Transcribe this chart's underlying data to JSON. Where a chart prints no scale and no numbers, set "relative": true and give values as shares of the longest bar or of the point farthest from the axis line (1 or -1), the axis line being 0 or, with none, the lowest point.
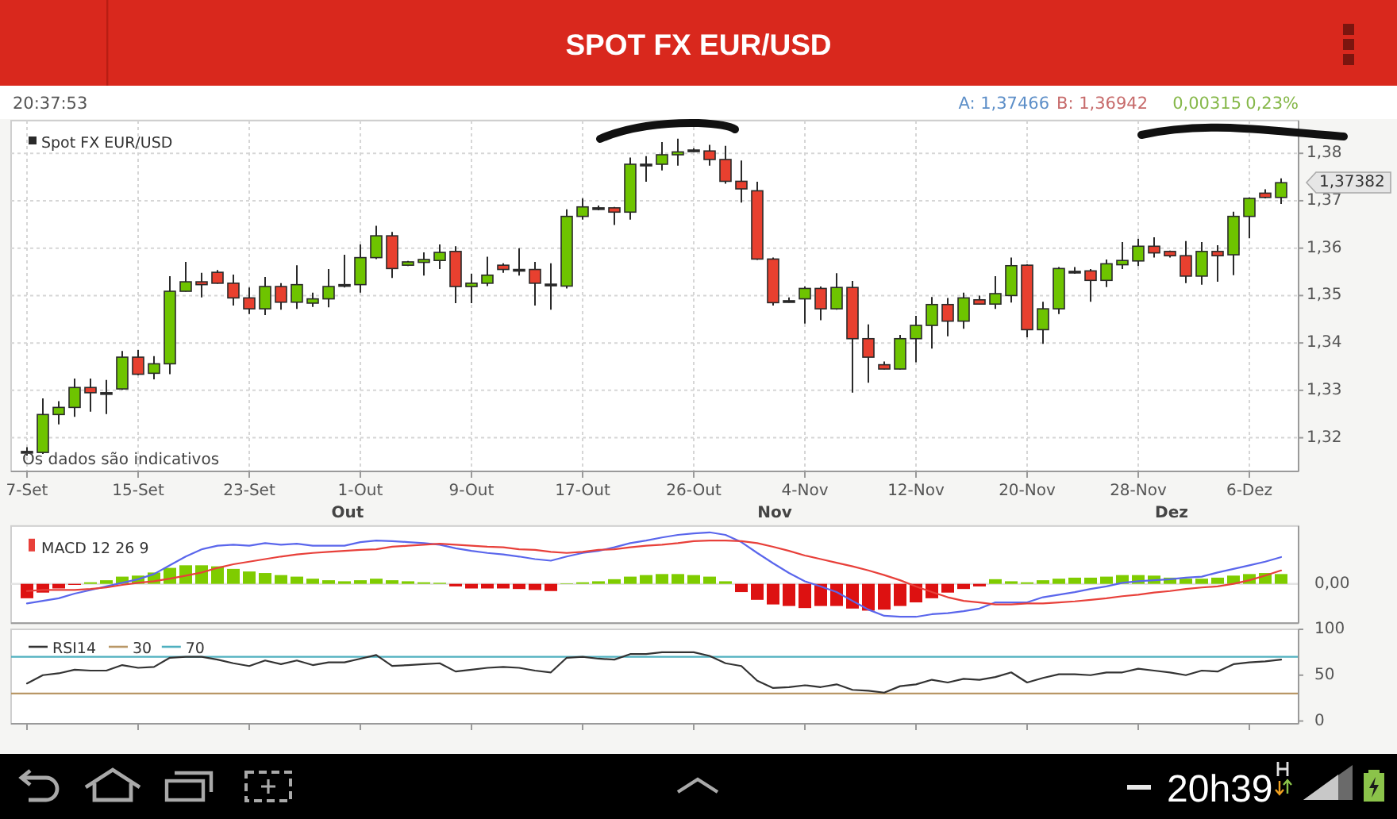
{
  "chart_data": [
    {
      "type": "candlestick",
      "title": "SPOT FX EUR/USD",
      "categories": [
        "7-Set",
        null,
        null,
        null,
        null,
        null,
        null,
        "15-Set",
        null,
        null,
        null,
        null,
        null,
        null,
        "23-Set",
        null,
        null,
        null,
        null,
        null,
        null,
        "1-Out",
        null,
        null,
        null,
        null,
        null,
        null,
        "9-Out",
        null,
        null,
        null,
        null,
        null,
        null,
        "17-Out",
        null,
        null,
        null,
        null,
        null,
        null,
        "26-Out",
        null,
        null,
        null,
        null,
        null,
        null,
        "4-Nov",
        null,
        null,
        null,
        null,
        null,
        null,
        "12-Nov",
        null,
        null,
        null,
        null,
        null,
        null,
        "20-Nov",
        null,
        null,
        null,
        null,
        null,
        null,
        "28-Nov",
        null,
        null,
        null,
        null,
        null,
        null,
        "6-Dez",
        null,
        null
      ],
      "ylim": [
        1.3129,
        1.3869
      ],
      "yticks": [
        {
          "value": 1.32,
          "label": "1,32"
        },
        {
          "value": 1.33,
          "label": "1,33"
        },
        {
          "value": 1.34,
          "label": "1,34"
        },
        {
          "value": 1.35,
          "label": "1,35"
        },
        {
          "value": 1.36,
          "label": "1,36"
        },
        {
          "value": 1.37,
          "label": "1,37"
        },
        {
          "value": 1.38,
          "label": "1,38"
        }
      ],
      "grid": true,
      "legend": "top left",
      "series": [
        {
          "name": "Spot FX EUR/USD",
          "color": "#2a2a2a",
          "colors": [
            "#222222",
            "#6ec400",
            "#6ec400",
            "#6ec400",
            "#e8402f",
            "#222222",
            "#6ec400",
            "#e8402f",
            "#6ec400",
            "#6ec400",
            "#6ec400",
            "#e8402f",
            "#e8402f",
            "#e8402f",
            "#e8402f",
            "#6ec400",
            "#e8402f",
            "#6ec400",
            "#6ec400",
            "#6ec400",
            "#222222",
            "#6ec400",
            "#6ec400",
            "#e8402f",
            "#6ec400",
            "#6ec400",
            "#6ec400",
            "#e8402f",
            "#6ec400",
            "#6ec400",
            "#e8402f",
            "#222222",
            "#e8402f",
            "#222222",
            "#6ec400",
            "#6ec400",
            "#222222",
            "#e8402f",
            "#6ec400",
            "#222222",
            "#6ec400",
            "#6ec400",
            "#222222",
            "#e8402f",
            "#e8402f",
            "#e8402f",
            "#e8402f",
            "#e8402f",
            "#222222",
            "#6ec400",
            "#e8402f",
            "#6ec400",
            "#e8402f",
            "#e8402f",
            "#e8402f",
            "#6ec400",
            "#6ec400",
            "#6ec400",
            "#e8402f",
            "#6ec400",
            "#e8402f",
            "#6ec400",
            "#6ec400",
            "#e8402f",
            "#6ec400",
            "#6ec400",
            "#222222",
            "#e8402f",
            "#6ec400",
            "#6ec400",
            "#6ec400",
            "#e8402f",
            "#e8402f",
            "#e8402f",
            "#6ec400",
            "#e8402f",
            "#6ec400",
            "#6ec400",
            "#e8402f",
            "#6ec400"
          ],
          "ohlc": [
            [
              1.3171,
              1.318,
              1.3162,
              1.3171
            ],
            [
              1.3169,
              1.3283,
              1.3166,
              1.3249
            ],
            [
              1.3249,
              1.3277,
              1.3228,
              1.3264
            ],
            [
              1.3264,
              1.3325,
              1.3244,
              1.3306
            ],
            [
              1.3306,
              1.3325,
              1.3255,
              1.3295
            ],
            [
              1.3295,
              1.3322,
              1.325,
              1.3295
            ],
            [
              1.3303,
              1.3383,
              1.3301,
              1.337
            ],
            [
              1.337,
              1.3385,
              1.3332,
              1.3334
            ],
            [
              1.3336,
              1.3372,
              1.3323,
              1.3356
            ],
            [
              1.3356,
              1.3541,
              1.3334,
              1.3509
            ],
            [
              1.3509,
              1.3571,
              1.3508,
              1.3529
            ],
            [
              1.3529,
              1.3548,
              1.3496,
              1.3523
            ],
            [
              1.3549,
              1.3554,
              1.3525,
              1.3526
            ],
            [
              1.3526,
              1.3544,
              1.3479,
              1.3495
            ],
            [
              1.3495,
              1.3517,
              1.3461,
              1.3472
            ],
            [
              1.3472,
              1.3539,
              1.3459,
              1.3519
            ],
            [
              1.3519,
              1.3526,
              1.347,
              1.3486
            ],
            [
              1.3486,
              1.3564,
              1.3472,
              1.3523
            ],
            [
              1.3484,
              1.3506,
              1.3476,
              1.3493
            ],
            [
              1.3493,
              1.3556,
              1.3475,
              1.3519
            ],
            [
              1.3523,
              1.3586,
              1.3517,
              1.3523
            ],
            [
              1.3523,
              1.3608,
              1.3506,
              1.358
            ],
            [
              1.358,
              1.3647,
              1.3577,
              1.3626
            ],
            [
              1.3626,
              1.3634,
              1.3537,
              1.3557
            ],
            [
              1.3564,
              1.3573,
              1.3562,
              1.3571
            ],
            [
              1.357,
              1.3591,
              1.3542,
              1.3576
            ],
            [
              1.3574,
              1.3608,
              1.3556,
              1.3591
            ],
            [
              1.3593,
              1.3604,
              1.3484,
              1.3519
            ],
            [
              1.3519,
              1.3546,
              1.3484,
              1.3526
            ],
            [
              1.3526,
              1.3582,
              1.352,
              1.3543
            ],
            [
              1.3564,
              1.3568,
              1.3548,
              1.3555
            ],
            [
              1.3555,
              1.36,
              1.3542,
              1.3555
            ],
            [
              1.3555,
              1.3571,
              1.3479,
              1.3526
            ],
            [
              1.3524,
              1.3568,
              1.347,
              1.3524
            ],
            [
              1.352,
              1.3682,
              1.3515,
              1.3667
            ],
            [
              1.3667,
              1.3705,
              1.366,
              1.3687
            ],
            [
              1.3685,
              1.369,
              1.368,
              1.3685
            ],
            [
              1.3685,
              1.3687,
              1.3649,
              1.3676
            ],
            [
              1.3676,
              1.3791,
              1.366,
              1.3777
            ],
            [
              1.3777,
              1.3794,
              1.374,
              1.3777
            ],
            [
              1.3777,
              1.3824,
              1.3764,
              1.3797
            ],
            [
              1.3797,
              1.3831,
              1.3774,
              1.3803
            ],
            [
              1.3807,
              1.3811,
              1.3803,
              1.3807
            ],
            [
              1.3805,
              1.3818,
              1.3774,
              1.3787
            ],
            [
              1.3787,
              1.3816,
              1.3736,
              1.3741
            ],
            [
              1.3741,
              1.3785,
              1.3696,
              1.3725
            ],
            [
              1.3721,
              1.374,
              1.3575,
              1.3577
            ],
            [
              1.3577,
              1.358,
              1.3479,
              1.3485
            ],
            [
              1.3489,
              1.3496,
              1.3485,
              1.3489
            ],
            [
              1.3493,
              1.3519,
              1.3441,
              1.3515
            ],
            [
              1.3515,
              1.3519,
              1.3448,
              1.3472
            ],
            [
              1.3472,
              1.3547,
              1.347,
              1.3517
            ],
            [
              1.3517,
              1.3531,
              1.3295,
              1.3409
            ],
            [
              1.3409,
              1.3439,
              1.3316,
              1.337
            ],
            [
              1.3354,
              1.3361,
              1.3344,
              1.3345
            ],
            [
              1.3345,
              1.3417,
              1.3344,
              1.3409
            ],
            [
              1.3409,
              1.3457,
              1.3359,
              1.3437
            ],
            [
              1.3437,
              1.3497,
              1.3388,
              1.3481
            ],
            [
              1.3481,
              1.3495,
              1.3414,
              1.3446
            ],
            [
              1.3446,
              1.3506,
              1.343,
              1.3495
            ],
            [
              1.3491,
              1.35,
              1.3481,
              1.3482
            ],
            [
              1.3482,
              1.3541,
              1.3472,
              1.3504
            ],
            [
              1.35,
              1.358,
              1.3485,
              1.3563
            ],
            [
              1.3564,
              1.3566,
              1.3412,
              1.3428
            ],
            [
              1.3428,
              1.3487,
              1.3398,
              1.3472
            ],
            [
              1.3472,
              1.356,
              1.3461,
              1.3557
            ],
            [
              1.3551,
              1.356,
              1.3546,
              1.3551
            ],
            [
              1.3552,
              1.3556,
              1.3487,
              1.3532
            ],
            [
              1.3532,
              1.3576,
              1.3518,
              1.3567
            ],
            [
              1.3565,
              1.3613,
              1.3556,
              1.3574
            ],
            [
              1.3573,
              1.362,
              1.3562,
              1.3604
            ],
            [
              1.3604,
              1.3623,
              1.358,
              1.359
            ],
            [
              1.3593,
              1.3595,
              1.358,
              1.3584
            ],
            [
              1.3584,
              1.3615,
              1.3526,
              1.3541
            ],
            [
              1.3541,
              1.3613,
              1.3523,
              1.3593
            ],
            [
              1.3593,
              1.3606,
              1.3529,
              1.3584
            ],
            [
              1.3586,
              1.3677,
              1.3543,
              1.3667
            ],
            [
              1.3667,
              1.3707,
              1.3621,
              1.3705
            ],
            [
              1.3716,
              1.3724,
              1.3705,
              1.3707
            ],
            [
              1.3707,
              1.3747,
              1.3693,
              1.3738
            ]
          ]
        }
      ],
      "annotations": [
        "20:37:53",
        "A: 1,37466",
        "B: 1,36942",
        "0,00315",
        "0,23%",
        "Os dados são indicativos",
        "1,37382",
        "Out",
        "Nov",
        "Dez",
        "20h39"
      ]
    },
    {
      "type": "bar",
      "relative": true,
      "categories": [
        null,
        null,
        null,
        null,
        null,
        null,
        null,
        null,
        null,
        null,
        null,
        null,
        null,
        null,
        null,
        null,
        null,
        null,
        null,
        null,
        null,
        null,
        null,
        null,
        null,
        null,
        null,
        null,
        null,
        null,
        null,
        null,
        null,
        null,
        null,
        null,
        null,
        null,
        null,
        null,
        null,
        null,
        null,
        null,
        null,
        null,
        null,
        null,
        null,
        null,
        null,
        null,
        null,
        null,
        null,
        null,
        null,
        null,
        null,
        null,
        null,
        null,
        null,
        null,
        null,
        null,
        null,
        null,
        null,
        null,
        null,
        null,
        null,
        null,
        null,
        null,
        null,
        null,
        null,
        null
      ],
      "legend": "top left",
      "ref_lines": [
        {
          "axis": "y",
          "value": 0,
          "label": "0,00"
        }
      ],
      "series": [
        {
          "type": "bar",
          "colors": [
            "#dd1111",
            "#dd1111",
            "#dd1111",
            "#dd1111",
            "#7fcc00",
            "#7fcc00",
            "#7fcc00",
            "#7fcc00",
            "#7fcc00",
            "#7fcc00",
            "#7fcc00",
            "#7fcc00",
            "#7fcc00",
            "#7fcc00",
            "#7fcc00",
            "#7fcc00",
            "#7fcc00",
            "#7fcc00",
            "#7fcc00",
            "#7fcc00",
            "#7fcc00",
            "#7fcc00",
            "#7fcc00",
            "#7fcc00",
            "#7fcc00",
            "#7fcc00",
            "#7fcc00",
            "#dd1111",
            "#dd1111",
            "#dd1111",
            "#dd1111",
            "#dd1111",
            "#dd1111",
            "#dd1111",
            "#7fcc00",
            "#7fcc00",
            "#7fcc00",
            "#7fcc00",
            "#7fcc00",
            "#7fcc00",
            "#7fcc00",
            "#7fcc00",
            "#7fcc00",
            "#7fcc00",
            "#7fcc00",
            "#dd1111",
            "#dd1111",
            "#dd1111",
            "#dd1111",
            "#dd1111",
            "#dd1111",
            "#dd1111",
            "#dd1111",
            "#dd1111",
            "#dd1111",
            "#dd1111",
            "#dd1111",
            "#dd1111",
            "#dd1111",
            "#dd1111",
            "#dd1111",
            "#7fcc00",
            "#7fcc00",
            "#7fcc00",
            "#7fcc00",
            "#7fcc00",
            "#7fcc00",
            "#7fcc00",
            "#7fcc00",
            "#7fcc00",
            "#7fcc00",
            "#7fcc00",
            "#7fcc00",
            "#7fcc00",
            "#7fcc00",
            "#7fcc00",
            "#7fcc00",
            "#7fcc00",
            "#7fcc00",
            "#7fcc00"
          ],
          "values": [
            -0.28,
            -0.17,
            -0.09,
            -0.02,
            0.03,
            0.07,
            0.14,
            0.16,
            0.22,
            0.31,
            0.36,
            0.36,
            0.34,
            0.29,
            0.24,
            0.21,
            0.17,
            0.14,
            0.1,
            0.07,
            0.05,
            0.07,
            0.1,
            0.07,
            0.05,
            0.03,
            0.02,
            -0.05,
            -0.09,
            -0.09,
            -0.09,
            -0.1,
            -0.12,
            -0.14,
            0.01,
            0.03,
            0.05,
            0.09,
            0.14,
            0.17,
            0.19,
            0.19,
            0.17,
            0.14,
            0.05,
            -0.16,
            -0.31,
            -0.4,
            -0.43,
            -0.47,
            -0.43,
            -0.43,
            -0.48,
            -0.52,
            -0.5,
            -0.43,
            -0.36,
            -0.28,
            -0.17,
            -0.1,
            -0.05,
            0.09,
            0.05,
            0.03,
            0.07,
            0.1,
            0.12,
            0.12,
            0.14,
            0.17,
            0.17,
            0.16,
            0.12,
            0.1,
            0.1,
            0.12,
            0.16,
            0.19,
            0.21,
            0.19
          ]
        },
        {
          "type": "line",
          "color": "#5a66ec",
          "values": [
            -0.38,
            -0.33,
            -0.28,
            -0.19,
            -0.12,
            -0.05,
            0.02,
            0.09,
            0.19,
            0.36,
            0.53,
            0.67,
            0.74,
            0.76,
            0.74,
            0.79,
            0.76,
            0.78,
            0.74,
            0.74,
            0.74,
            0.81,
            0.84,
            0.83,
            0.81,
            0.79,
            0.76,
            0.69,
            0.64,
            0.6,
            0.57,
            0.53,
            0.48,
            0.45,
            0.53,
            0.6,
            0.64,
            0.71,
            0.79,
            0.84,
            0.9,
            0.95,
            0.98,
            1,
            0.95,
            0.81,
            0.6,
            0.4,
            0.21,
            0.05,
            -0.05,
            -0.16,
            -0.33,
            -0.5,
            -0.62,
            -0.64,
            -0.64,
            -0.59,
            -0.57,
            -0.53,
            -0.48,
            -0.36,
            -0.36,
            -0.36,
            -0.26,
            -0.21,
            -0.16,
            -0.1,
            -0.05,
            0.02,
            0.05,
            0.07,
            0.09,
            0.12,
            0.14,
            0.22,
            0.29,
            0.36,
            0.43,
            0.52
          ]
        },
        {
          "type": "line",
          "name": "MACD 12 26 9",
          "color": "#e8403a",
          "values": [
            -0.14,
            -0.12,
            -0.12,
            -0.12,
            -0.1,
            -0.07,
            -0.02,
            0.02,
            0.05,
            0.1,
            0.16,
            0.22,
            0.31,
            0.38,
            0.43,
            0.48,
            0.53,
            0.57,
            0.6,
            0.62,
            0.64,
            0.66,
            0.67,
            0.72,
            0.74,
            0.76,
            0.78,
            0.76,
            0.74,
            0.72,
            0.71,
            0.67,
            0.66,
            0.62,
            0.6,
            0.62,
            0.66,
            0.67,
            0.71,
            0.74,
            0.76,
            0.79,
            0.83,
            0.84,
            0.84,
            0.83,
            0.79,
            0.72,
            0.64,
            0.55,
            0.48,
            0.41,
            0.34,
            0.26,
            0.17,
            0.07,
            -0.05,
            -0.16,
            -0.26,
            -0.33,
            -0.36,
            -0.4,
            -0.4,
            -0.38,
            -0.38,
            -0.36,
            -0.34,
            -0.31,
            -0.28,
            -0.24,
            -0.21,
            -0.17,
            -0.14,
            -0.1,
            -0.07,
            -0.05,
            0.0,
            0.07,
            0.16,
            0.26
          ]
        }
      ]
    },
    {
      "type": "line",
      "categories": [
        null,
        null,
        null,
        null,
        null,
        null,
        null,
        null,
        null,
        null,
        null,
        null,
        null,
        null,
        null,
        null,
        null,
        null,
        null,
        null,
        null,
        null,
        null,
        null,
        null,
        null,
        null,
        null,
        null,
        null,
        null,
        null,
        null,
        null,
        null,
        null,
        null,
        null,
        null,
        null,
        null,
        null,
        null,
        null,
        null,
        null,
        null,
        null,
        null,
        null,
        null,
        null,
        null,
        null,
        null,
        null,
        null,
        null,
        null,
        null,
        null,
        null,
        null,
        null,
        null,
        null,
        null,
        null,
        null,
        null,
        null,
        null,
        null,
        null,
        null,
        null,
        null,
        null,
        null,
        null
      ],
      "ylim": [
        -3,
        100
      ],
      "yticks": [
        0,
        50,
        100
      ],
      "legend": "top left",
      "ref_lines": [
        {
          "axis": "y",
          "value": 30,
          "label": "30",
          "color": "#b99766"
        },
        {
          "axis": "y",
          "value": 70,
          "label": "70",
          "color": "#4fb0bf"
        }
      ],
      "series": [
        {
          "name": "RSI14",
          "color": "#333333",
          "values": [
            41,
            50,
            52,
            56,
            55,
            55,
            61,
            58,
            59,
            69,
            70,
            70,
            67,
            63,
            60,
            66,
            62,
            66,
            61,
            64,
            64,
            68,
            72,
            60,
            61,
            62,
            63,
            54,
            56,
            58,
            59,
            58,
            55,
            53,
            69,
            70,
            68,
            67,
            73,
            73,
            75,
            75,
            75,
            71,
            63,
            60,
            44,
            36,
            37,
            39,
            37,
            40,
            34,
            33,
            31,
            38,
            40,
            45,
            42,
            46,
            45,
            48,
            53,
            42,
            47,
            51,
            51,
            50,
            53,
            53,
            57,
            55,
            53,
            50,
            55,
            54,
            62,
            64,
            65,
            67
          ]
        }
      ]
    }
  ]
}
